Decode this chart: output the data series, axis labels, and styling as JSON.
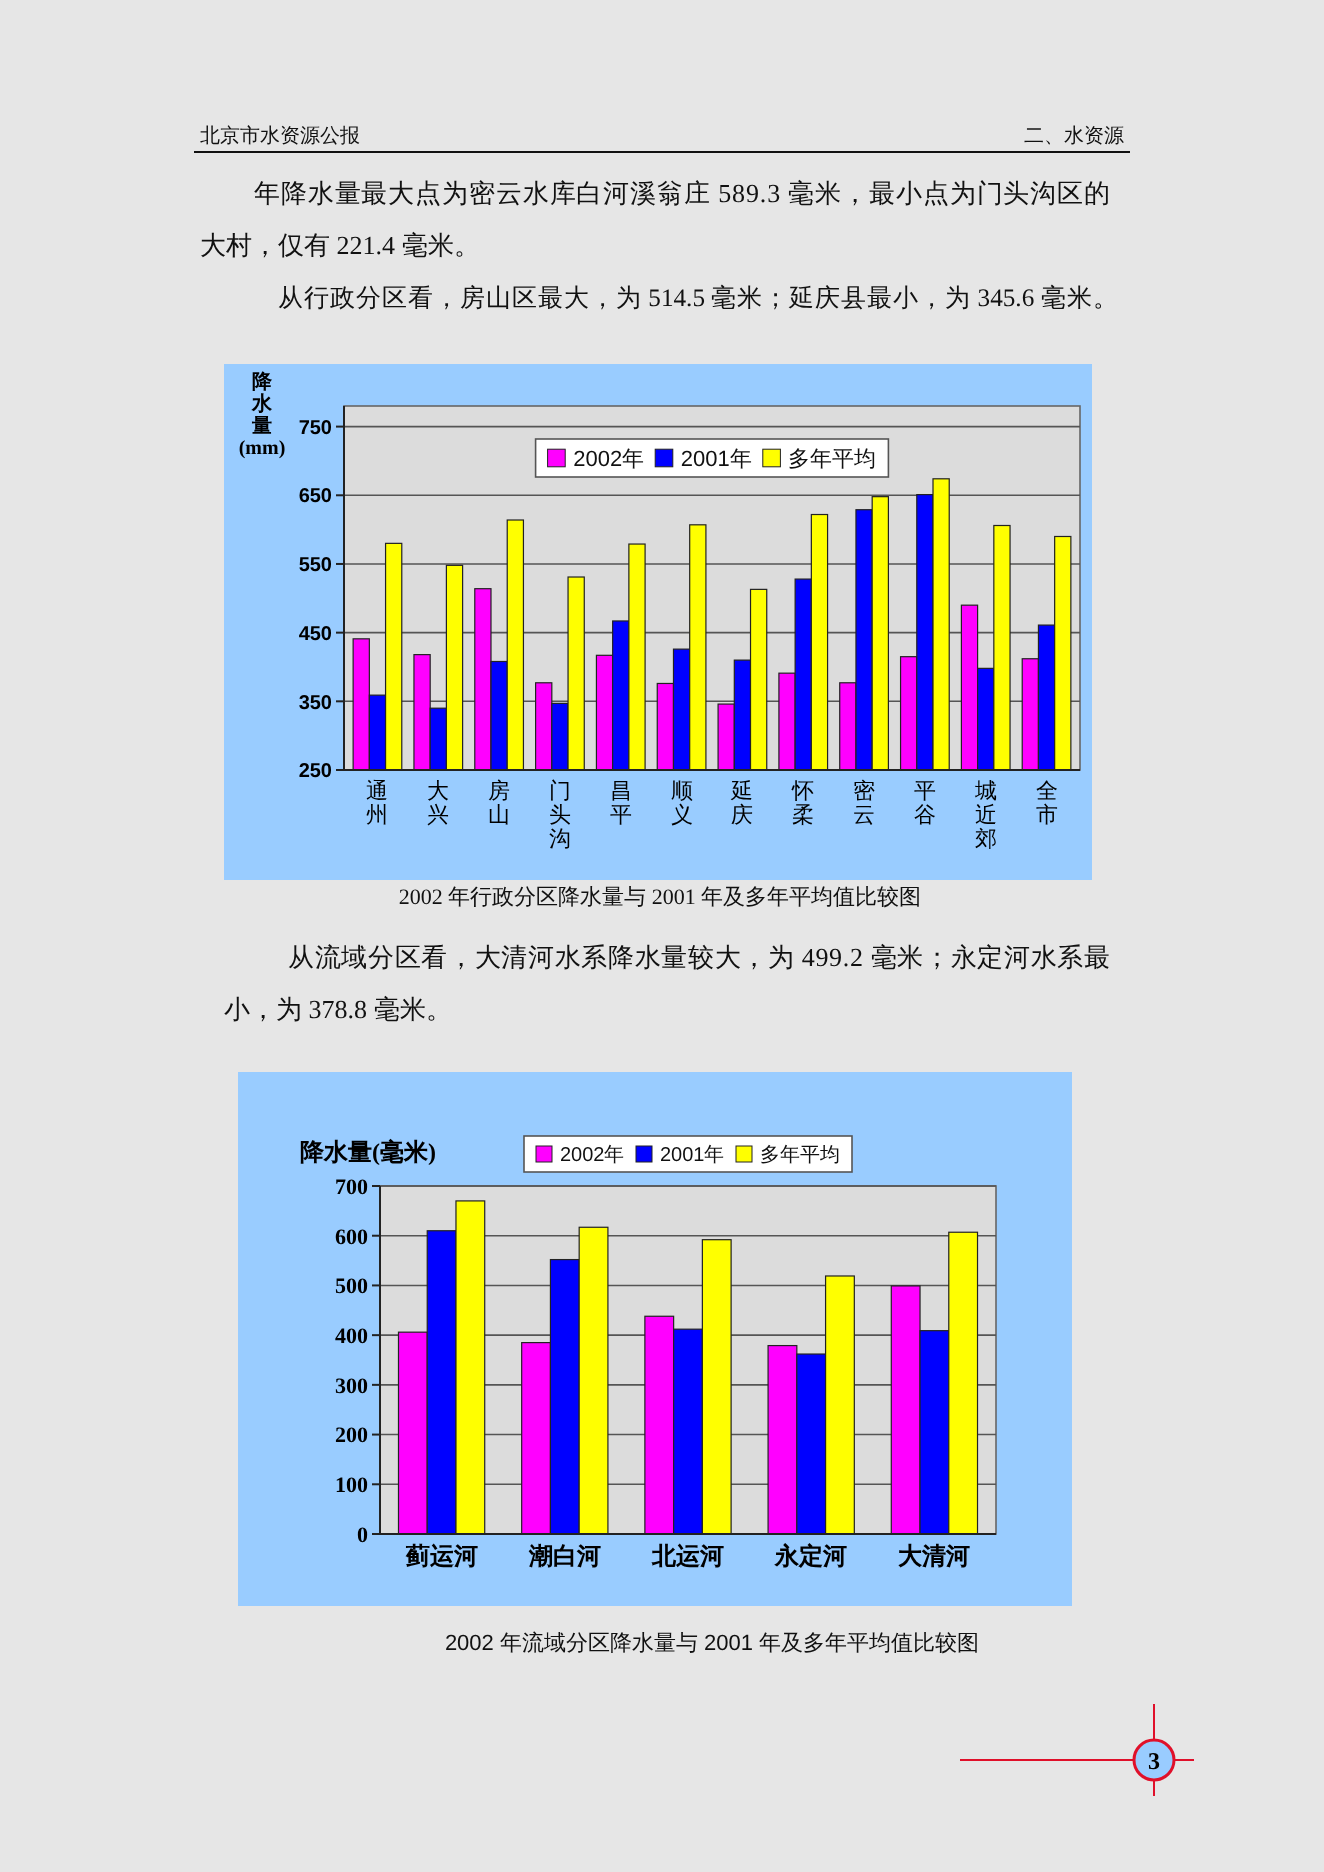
{
  "chart_data": [
    {
      "type": "bar",
      "annotations": [
        "北京市水资源公报",
        "二、水资源",
        "年降水量最大点为密云水库白河溪翁庄 589.3 毫米，最小点为门头沟区的大村，仅有 221.4 毫米。",
        "从行政分区看，房山区最大，为 514.5 毫米；延庆县最小，为 345.6 毫米。",
        "2002 年行政分区降水量与 2001 年及多年平均值比较图"
      ],
      "ylabel": "降水量(mm)",
      "categories": [
        "通州",
        "大兴",
        "房山",
        "门头沟",
        "昌平",
        "顺义",
        "延庆",
        "怀柔",
        "密云",
        "平谷",
        "城近郊",
        "全市"
      ],
      "series": [
        {
          "name": "2002年",
          "color": "#ff00ff",
          "values": [
            441,
            418,
            514,
            377,
            417,
            376,
            346,
            391,
            377,
            415,
            490,
            412
          ]
        },
        {
          "name": "2001年",
          "color": "#0000ff",
          "values": [
            359,
            340,
            408,
            347,
            467,
            426,
            410,
            528,
            629,
            651,
            398,
            461
          ]
        },
        {
          "name": "多年平均",
          "color": "#ffff00",
          "values": [
            580,
            548,
            614,
            531,
            579,
            607,
            513,
            622,
            648,
            674,
            606,
            590
          ]
        }
      ],
      "ylim": [
        250,
        780
      ],
      "yticks": [
        250,
        350,
        450,
        550,
        650,
        750
      ],
      "grid": "y",
      "legend": "top"
    },
    {
      "type": "bar",
      "annotations": [
        "从流域分区看，大清河水系降水量较大，为 499.2 毫米；永定河水系最小，为 378.8 毫米。",
        "2002 年流域分区降水量与 2001 年及多年平均值比较图",
        "3"
      ],
      "ylabel": "降水量(毫米)",
      "categories": [
        "蓟运河",
        "潮白河",
        "北运河",
        "永定河",
        "大清河"
      ],
      "series": [
        {
          "name": "2002年",
          "color": "#ff00ff",
          "values": [
            406,
            385,
            438,
            379,
            499
          ]
        },
        {
          "name": "2001年",
          "color": "#0000ff",
          "values": [
            610,
            552,
            412,
            362,
            409
          ]
        },
        {
          "name": "多年平均",
          "color": "#ffff00",
          "values": [
            670,
            617,
            592,
            519,
            607
          ]
        }
      ],
      "ylim": [
        0,
        700
      ],
      "yticks": [
        0,
        100,
        200,
        300,
        400,
        500,
        600,
        700
      ],
      "grid": "y",
      "legend": "top"
    }
  ]
}
